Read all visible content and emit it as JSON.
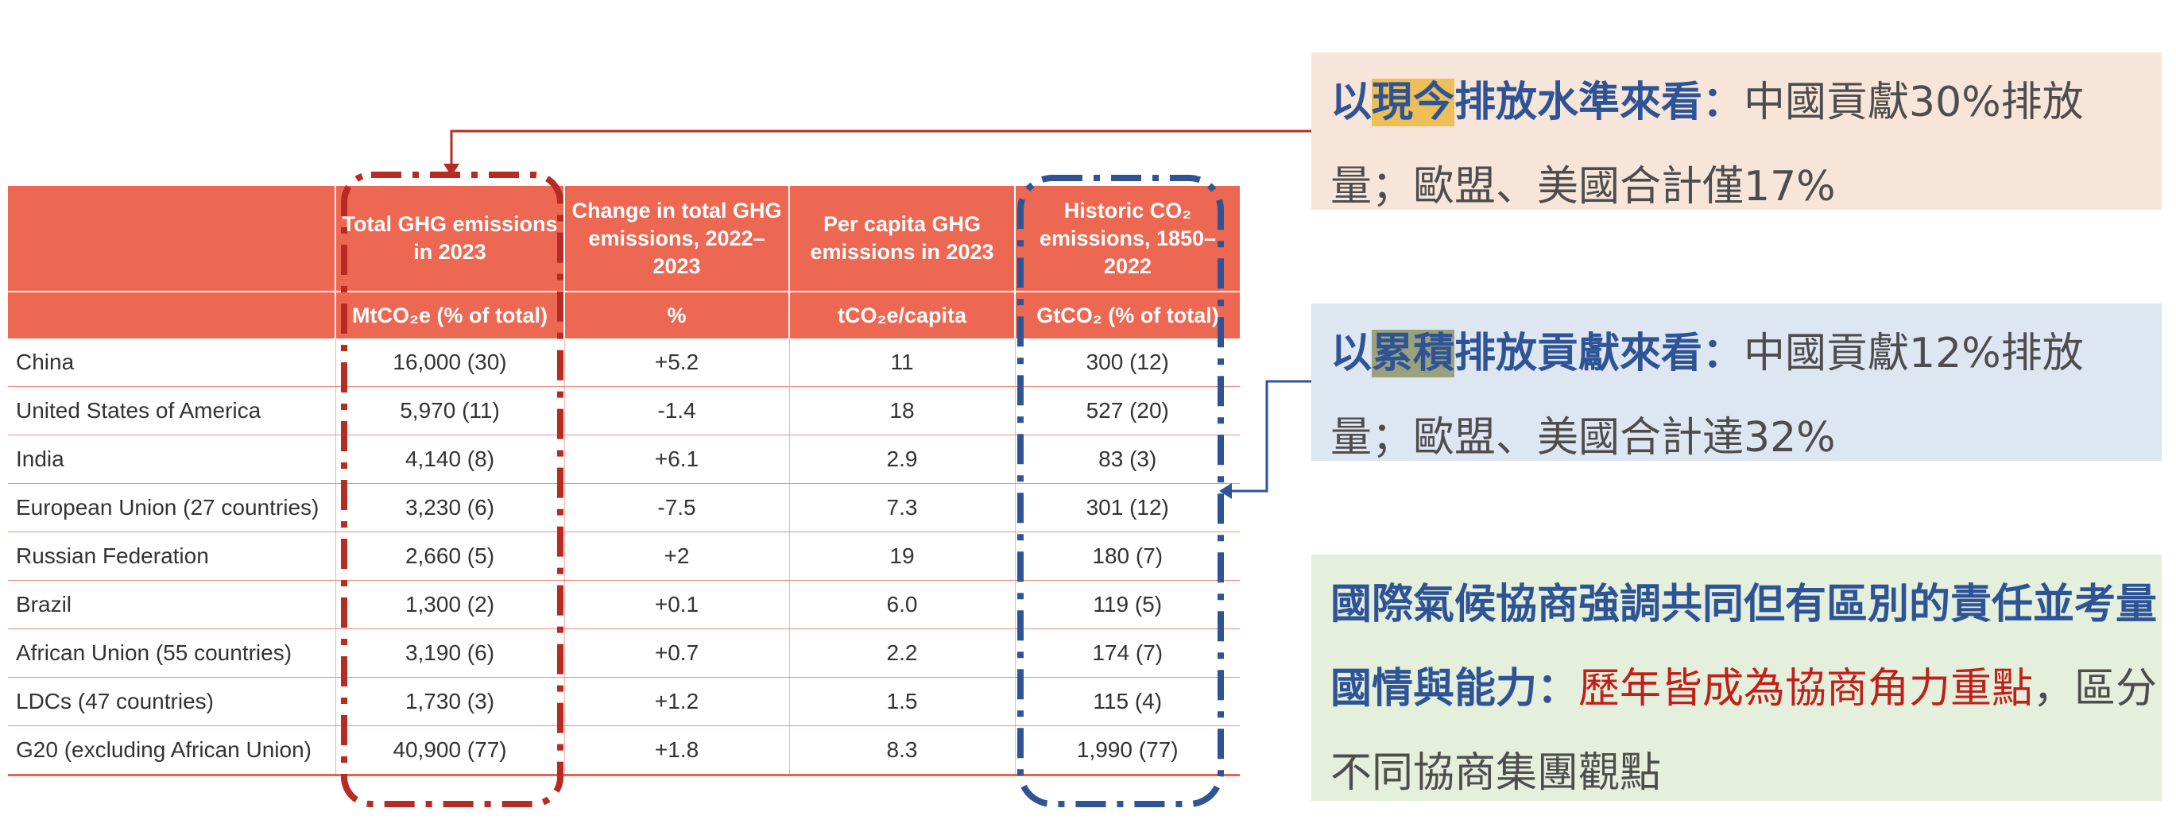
{
  "table": {
    "headers": [
      "",
      "Total GHG emissions in 2023",
      "Change in total GHG emissions, 2022–2023",
      "Per capita GHG emissions in 2023",
      "Historic CO₂ emissions, 1850–2022"
    ],
    "units": [
      "",
      "MtCO₂e (% of total)",
      "%",
      "tCO₂e/capita",
      "GtCO₂ (% of total)"
    ],
    "rows": [
      {
        "region": "China",
        "total": "16,000 (30)",
        "change": "+5.2",
        "per_capita": "11",
        "historic": "300 (12)"
      },
      {
        "region": "United States of America",
        "total": "5,970 (11)",
        "change": "-1.4",
        "per_capita": "18",
        "historic": "527 (20)"
      },
      {
        "region": "India",
        "total": "4,140 (8)",
        "change": "+6.1",
        "per_capita": "2.9",
        "historic": "83 (3)"
      },
      {
        "region": "European Union (27 countries)",
        "total": "3,230 (6)",
        "change": "-7.5",
        "per_capita": "7.3",
        "historic": "301 (12)"
      },
      {
        "region": "Russian Federation",
        "total": "2,660 (5)",
        "change": "+2",
        "per_capita": "19",
        "historic": "180 (7)"
      },
      {
        "region": "Brazil",
        "total": "1,300 (2)",
        "change": "+0.1",
        "per_capita": "6.0",
        "historic": "119 (5)"
      },
      {
        "region": "African Union (55 countries)",
        "total": "3,190 (6)",
        "change": "+0.7",
        "per_capita": "2.2",
        "historic": "174 (7)"
      },
      {
        "region": "LDCs (47 countries)",
        "total": "1,730 (3)",
        "change": "+1.2",
        "per_capita": "1.5",
        "historic": "115 (4)"
      },
      {
        "region": "G20 (excluding African Union)",
        "total": "40,900 (77)",
        "change": "+1.8",
        "per_capita": "8.3",
        "historic": "1,990 (77)"
      }
    ]
  },
  "annotations": {
    "current": {
      "prefix": "以",
      "mark": "現今",
      "heading_rest": "排放水準來看：",
      "body": "中國貢獻30%排放量；歐盟、美國合計僅17%"
    },
    "cumulative": {
      "prefix": "以",
      "mark": "累積",
      "heading_rest": "排放貢獻來看：",
      "body": "中國貢獻12%排放量；歐盟、美國合計達32%"
    },
    "negotiation": {
      "heading": "國際氣候協商強調共同但有區別的責任並考量國情與能力：",
      "red_text": "歷年皆成為協商角力重點",
      "body": "，區分不同協商集團觀點"
    }
  },
  "colors": {
    "header_bg": "#ec6852",
    "red_dash": "#b72b23",
    "blue_dash": "#2f5496",
    "panel_current_bg": "#f8e5d9",
    "panel_cumulative_bg": "#dee6f2",
    "panel_negotiation_bg": "#e4efdc"
  }
}
